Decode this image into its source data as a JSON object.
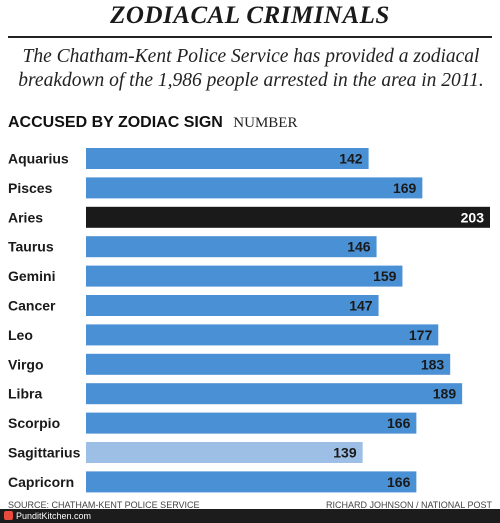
{
  "header": {
    "title": "ZODIACAL CRIMINALS",
    "subtitle": "The Chatham-Kent Police Service has provided a zodiacal breakdown of the 1,986 people arrested in the area in 2011."
  },
  "chart_heading": {
    "main": "ACCUSED BY ZODIAC SIGN",
    "unit": "NUMBER"
  },
  "chart_data": {
    "type": "bar",
    "orientation": "horizontal",
    "title": "ACCUSED BY ZODIAC SIGN",
    "xlabel": "NUMBER",
    "ylabel": "",
    "categories": [
      "Aquarius",
      "Pisces",
      "Aries",
      "Taurus",
      "Gemini",
      "Cancer",
      "Leo",
      "Virgo",
      "Libra",
      "Scorpio",
      "Sagittarius",
      "Capricorn"
    ],
    "values": [
      142,
      169,
      203,
      146,
      159,
      147,
      177,
      183,
      189,
      166,
      139,
      166
    ],
    "xlim": [
      0,
      203
    ],
    "grid": false,
    "legend": "none",
    "colors": {
      "default": "#4a90d4",
      "highest": "#1a1a1a",
      "lowest": "#9dbfe6"
    }
  },
  "source": {
    "left": "SOURCE: CHATHAM-KENT POLICE SERVICE",
    "right": "RICHARD JOHNSON / NATIONAL POST"
  },
  "footer": {
    "text": "PunditKitchen.com"
  }
}
